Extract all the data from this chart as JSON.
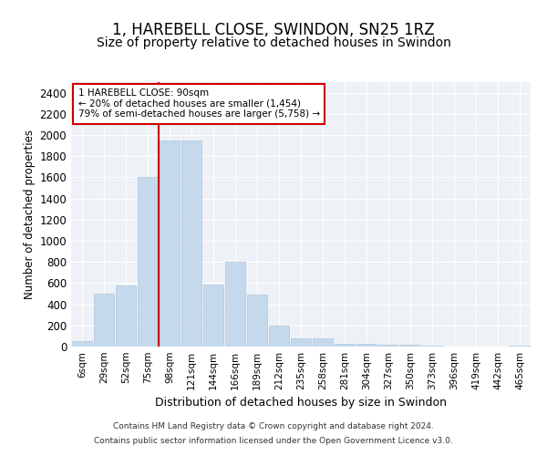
{
  "title1": "1, HAREBELL CLOSE, SWINDON, SN25 1RZ",
  "title2": "Size of property relative to detached houses in Swindon",
  "xlabel": "Distribution of detached houses by size in Swindon",
  "ylabel": "Number of detached properties",
  "footer1": "Contains HM Land Registry data © Crown copyright and database right 2024.",
  "footer2": "Contains public sector information licensed under the Open Government Licence v3.0.",
  "categories": [
    "6sqm",
    "29sqm",
    "52sqm",
    "75sqm",
    "98sqm",
    "121sqm",
    "144sqm",
    "166sqm",
    "189sqm",
    "212sqm",
    "235sqm",
    "258sqm",
    "281sqm",
    "304sqm",
    "327sqm",
    "350sqm",
    "373sqm",
    "396sqm",
    "419sqm",
    "442sqm",
    "465sqm"
  ],
  "values": [
    50,
    500,
    580,
    1600,
    1950,
    1950,
    590,
    800,
    490,
    200,
    80,
    80,
    25,
    25,
    20,
    15,
    5,
    3,
    2,
    2,
    5
  ],
  "bar_color": "#c5d9ec",
  "bar_edge_color": "#aec6dc",
  "annotation_text": "1 HAREBELL CLOSE: 90sqm\n← 20% of detached houses are smaller (1,454)\n79% of semi-detached houses are larger (5,758) →",
  "annotation_box_color": "#ffffff",
  "annotation_box_edge": "#cc0000",
  "vline_color": "#cc0000",
  "vline_x_index": 3.5,
  "ylim": [
    0,
    2500
  ],
  "yticks": [
    0,
    200,
    400,
    600,
    800,
    1000,
    1200,
    1400,
    1600,
    1800,
    2000,
    2200,
    2400
  ],
  "bg_color": "#eef2f7",
  "grid_color": "#ffffff",
  "title1_fontsize": 12,
  "title2_fontsize": 10
}
